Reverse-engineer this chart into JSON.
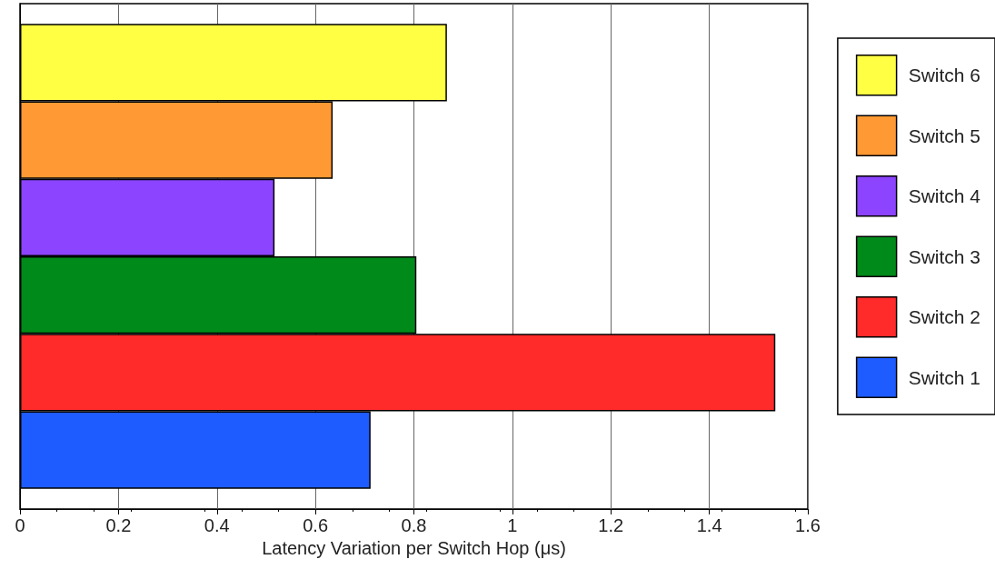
{
  "chart_data": {
    "type": "bar",
    "orientation": "horizontal",
    "categories": [
      null
    ],
    "xlabel": "Latency Variation per Switch Hop (μs)",
    "xlim": [
      0,
      1.6
    ],
    "xticks": [
      0,
      0.2,
      0.4,
      0.6,
      0.8,
      1,
      1.2,
      1.4,
      1.6
    ],
    "grid": "x",
    "legend": "right",
    "series": [
      {
        "name": "Switch 6",
        "color": "#ffff44",
        "values": [
          0.867
        ]
      },
      {
        "name": "Switch 5",
        "color": "#ff9933",
        "values": [
          0.635
        ]
      },
      {
        "name": "Switch 4",
        "color": "#8c44ff",
        "values": [
          0.517
        ]
      },
      {
        "name": "Switch 3",
        "color": "#008a1a",
        "values": [
          0.805
        ]
      },
      {
        "name": "Switch 2",
        "color": "#ff2a2a",
        "values": [
          1.534
        ]
      },
      {
        "name": "Switch 1",
        "color": "#1f5cff",
        "values": [
          0.712
        ]
      }
    ]
  }
}
